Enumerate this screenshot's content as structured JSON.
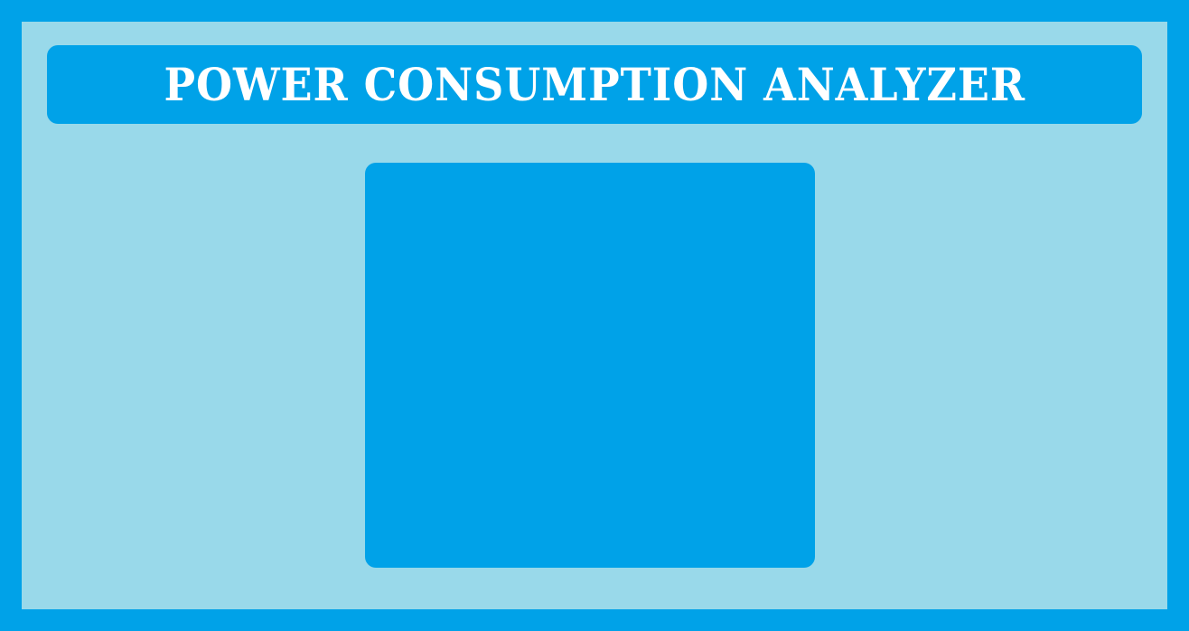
{
  "app": {
    "title": "POWER CONSUMPTION ANALYZER"
  },
  "colors": {
    "frame": "#00a2e8",
    "background": "#99d9ea",
    "title_bar": "#00a2e8",
    "panel": "#00a2e8",
    "title_text": "#ffffff"
  }
}
